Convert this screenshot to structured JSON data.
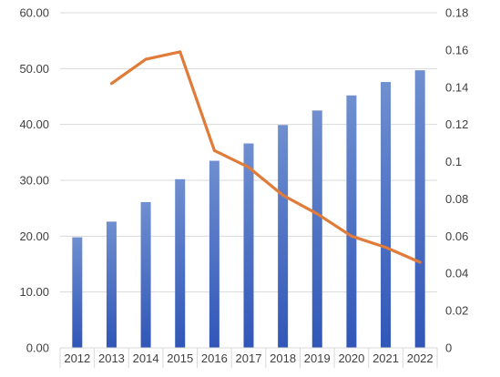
{
  "chart_data": {
    "type": "bar",
    "categories": [
      "2012",
      "2013",
      "2014",
      "2015",
      "2016",
      "2017",
      "2018",
      "2019",
      "2020",
      "2021",
      "2022"
    ],
    "series": [
      {
        "axis": "left",
        "type": "bar",
        "values": [
          19.8,
          22.6,
          26.1,
          30.2,
          33.5,
          36.6,
          39.9,
          42.5,
          45.2,
          47.6,
          49.7
        ]
      },
      {
        "axis": "right",
        "type": "line",
        "values": [
          null,
          0.142,
          0.155,
          0.159,
          0.106,
          0.097,
          0.082,
          0.072,
          0.06,
          0.054,
          0.046
        ]
      }
    ],
    "y_left": {
      "ylim": [
        0,
        60
      ],
      "ticks": [
        "0.00",
        "10.00",
        "20.00",
        "30.00",
        "40.00",
        "50.00",
        "60.00"
      ]
    },
    "y_right": {
      "ylim": [
        0,
        0.18
      ],
      "ticks": [
        "0",
        "0.02",
        "0.04",
        "0.06",
        "0.08",
        "0.1",
        "0.12",
        "0.14",
        "0.16",
        "0.18"
      ]
    },
    "grid": true,
    "legend": "none"
  },
  "colors": {
    "bar_top": "#6f8fd0",
    "bar_bottom": "#3056b8",
    "line": "#e07b39",
    "grid": "#d9d9d9",
    "text": "#404040"
  }
}
